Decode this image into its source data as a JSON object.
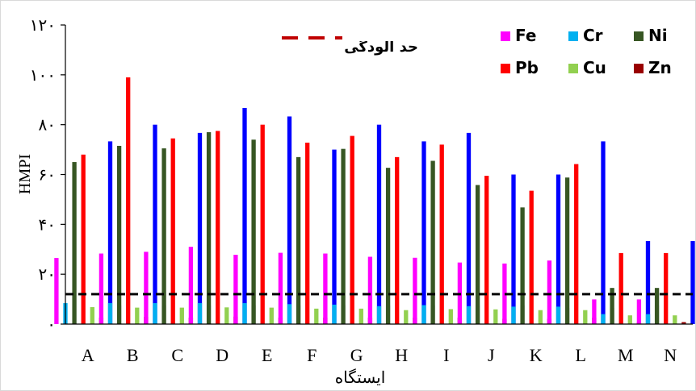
{
  "chart_data": {
    "type": "bar",
    "title": "",
    "xlabel": "ایستگاه",
    "ylabel": "HMPI",
    "ylim": [
      0,
      120
    ],
    "yticks": [
      0,
      20,
      40,
      60,
      80,
      100,
      120
    ],
    "ytick_labels": [
      "۰",
      "۲۰",
      "۴۰",
      "۶۰",
      "۸۰",
      "۱۰۰",
      "۱۲۰"
    ],
    "categories": [
      "A",
      "B",
      "C",
      "D",
      "E",
      "F",
      "G",
      "H",
      "I",
      "J",
      "K",
      "L",
      "M",
      "N"
    ],
    "legend_position": "top-right",
    "grid": false,
    "series": [
      {
        "name": "Fe",
        "color": "#ff00ff",
        "values": [
          26.5,
          28.3,
          29,
          31,
          27.8,
          28.6,
          28.3,
          27,
          26.6,
          24.7,
          24.3,
          25.5,
          9.9,
          9.9
        ]
      },
      {
        "name": "Cr",
        "color": "#00b0f0",
        "values": [
          8.4,
          8.4,
          8.4,
          8.4,
          8.4,
          8,
          7.8,
          7.2,
          7.6,
          7.2,
          7,
          7,
          4,
          4
        ]
      },
      {
        "name": "Ni",
        "color": "#375623",
        "values": [
          65,
          71.5,
          70.5,
          77,
          74,
          67,
          70.3,
          62.7,
          65.5,
          55.8,
          46.8,
          58.8,
          14.5,
          14.5
        ]
      },
      {
        "name": "Pb",
        "color": "#ff0000",
        "values": [
          68,
          99,
          74.5,
          77.5,
          80,
          72.8,
          75.5,
          67,
          72,
          59.5,
          53.5,
          64.2,
          28.5,
          28.5
        ]
      },
      {
        "name": "Cu",
        "color": "#92d050",
        "values": [
          6.8,
          6.6,
          6.6,
          6.7,
          6.6,
          6.2,
          6.2,
          5.6,
          6,
          5.9,
          5.6,
          5.6,
          3.5,
          3.5
        ]
      },
      {
        "name": "Zn",
        "color": "#990000",
        "values": [
          2.6,
          2.9,
          2.6,
          3,
          2.6,
          2.6,
          2.6,
          2.6,
          2.6,
          2.1,
          2.1,
          2.6,
          0.8,
          0.8
        ]
      },
      {
        "name": "",
        "color": "#0000ff",
        "values": [
          73.3,
          80,
          76.7,
          86.7,
          83.3,
          70,
          80,
          73.3,
          76.7,
          60,
          60,
          73.3,
          33.3,
          33.3
        ]
      },
      {
        "name": "",
        "color": "#bfbfbf",
        "values": [
          7.5,
          7.5,
          7.5,
          7.5,
          7.5,
          7.5,
          7.5,
          7.5,
          7.5,
          7.5,
          6.5,
          6.5,
          7.5,
          8.5
        ]
      }
    ],
    "reference_line": {
      "label": "حد آلودگی",
      "value": 12,
      "color": "#000000",
      "style": "dashed"
    }
  }
}
